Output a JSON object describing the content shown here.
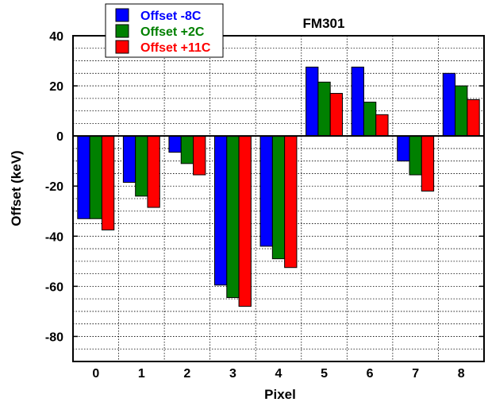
{
  "chart_data": {
    "type": "bar",
    "title": "FM301",
    "xlabel": "Pixel",
    "ylabel": "Offset (keV)",
    "categories": [
      "0",
      "1",
      "2",
      "3",
      "4",
      "5",
      "6",
      "7",
      "8"
    ],
    "ylim": [
      -90,
      40
    ],
    "yticks": [
      40,
      20,
      0,
      -20,
      -40,
      -60,
      -80
    ],
    "grid": true,
    "legend_position": "top-left",
    "series": [
      {
        "name": "Offset -8C",
        "color": "#0000ff",
        "values": [
          -33,
          -18.5,
          -6.5,
          -59.5,
          -44,
          27.5,
          27.5,
          -10,
          25
        ]
      },
      {
        "name": "Offset +2C",
        "color": "#008000",
        "values": [
          -33,
          -24,
          -11,
          -64.5,
          -49,
          21.5,
          13.5,
          -15.5,
          20
        ]
      },
      {
        "name": "Offset +11C",
        "color": "#ff0000",
        "values": [
          -37.5,
          -28.5,
          -15.5,
          -68,
          -52.5,
          17,
          8.5,
          -22,
          14.5
        ]
      }
    ]
  }
}
